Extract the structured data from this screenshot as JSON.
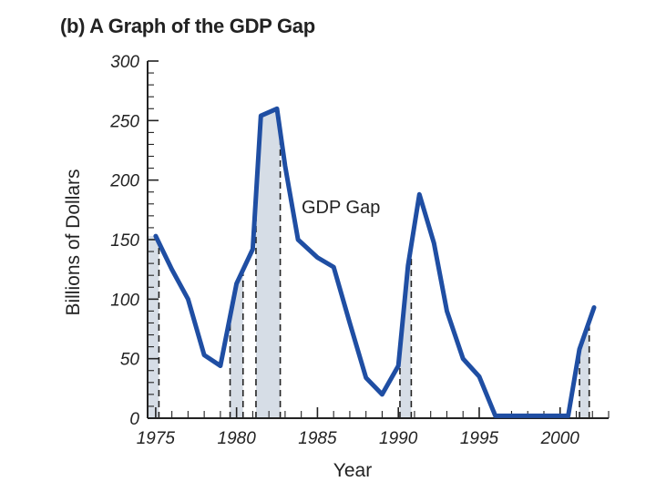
{
  "chart_data": {
    "type": "line",
    "title": "(b) A Graph of the GDP Gap",
    "xlabel": "Year",
    "ylabel": "Billions of Dollars",
    "annotation": "GDP Gap",
    "xlim": [
      1974.5,
      2003
    ],
    "ylim": [
      0,
      300
    ],
    "x_ticks": [
      1975,
      1980,
      1985,
      1990,
      1995,
      2000
    ],
    "y_ticks": [
      0,
      50,
      100,
      150,
      200,
      250,
      300
    ],
    "series": [
      {
        "name": "GDP Gap",
        "color": "#1f4ea3",
        "points": [
          [
            1975,
            153
          ],
          [
            1976,
            125
          ],
          [
            1977,
            100
          ],
          [
            1978,
            53
          ],
          [
            1979,
            44
          ],
          [
            1980,
            113
          ],
          [
            1981,
            142
          ],
          [
            1981.5,
            254
          ],
          [
            1982.5,
            260
          ],
          [
            1983,
            212
          ],
          [
            1983.8,
            150
          ],
          [
            1985,
            135
          ],
          [
            1986,
            127
          ],
          [
            1987,
            80
          ],
          [
            1988,
            34
          ],
          [
            1989,
            20
          ],
          [
            1990,
            44
          ],
          [
            1990.6,
            128
          ],
          [
            1991.3,
            188
          ],
          [
            1992.2,
            147
          ],
          [
            1993,
            90
          ],
          [
            1994,
            50
          ],
          [
            1995,
            35
          ],
          [
            1996,
            2
          ],
          [
            1997,
            2
          ],
          [
            1998,
            2
          ],
          [
            1999,
            2
          ],
          [
            2000,
            2
          ],
          [
            2000.5,
            2
          ],
          [
            2001.2,
            58
          ],
          [
            2002.1,
            93
          ]
        ]
      }
    ],
    "recession_bands": [
      [
        1974.5,
        1975.2
      ],
      [
        1979.6,
        1980.4
      ],
      [
        1981.2,
        1982.7
      ],
      [
        1990.1,
        1990.8
      ],
      [
        2001.2,
        2001.8
      ]
    ],
    "colors": {
      "line": "#1f4ea3",
      "band": "#d6dde6",
      "axis": "#222222"
    }
  }
}
